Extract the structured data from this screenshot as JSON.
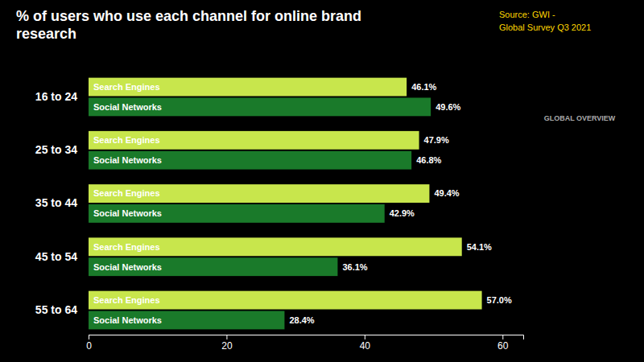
{
  "chart_data": {
    "type": "bar",
    "orientation": "horizontal",
    "title": "% of users who use each channel for online brand\nresearch",
    "annotations": [
      "Source: GWI -",
      "Global Survey Q3 2021",
      "GLOBAL OVERVIEW"
    ],
    "categories": [
      "16  to 24",
      "25 to 34",
      "35 to 44",
      "45 to 54",
      "55 to 64"
    ],
    "series": [
      {
        "name": "Search Engines",
        "color": "#c8e64c",
        "values": [
          46.1,
          47.9,
          49.4,
          54.1,
          57.0
        ],
        "value_labels": [
          "46.1%",
          "47.9%",
          "49.4%",
          "54.1%",
          "57.0%"
        ]
      },
      {
        "name": "Social Networks",
        "color": "#1a7a2a",
        "values": [
          49.6,
          46.8,
          42.9,
          36.1,
          28.4
        ],
        "value_labels": [
          "49.6%",
          "46.8%",
          "42.9%",
          "36.1%",
          "28.4%"
        ]
      }
    ],
    "xlim": [
      0,
      63
    ],
    "xticks": [
      0,
      20,
      40,
      60
    ],
    "grid": false,
    "data_labels": true
  }
}
